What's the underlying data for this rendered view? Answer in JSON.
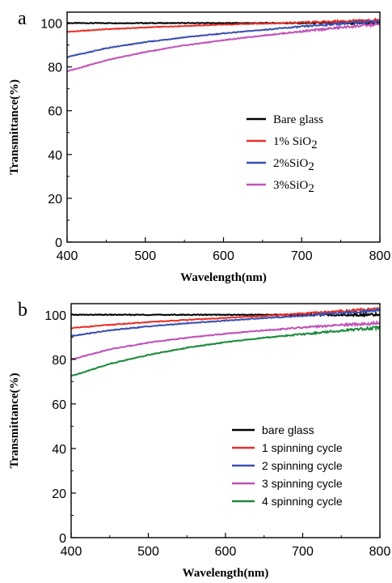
{
  "chart_data": [
    {
      "panel_label": "a",
      "type": "line",
      "xlabel": "Wavelength(nm)",
      "ylabel": "Transmittance(%)",
      "xlim": [
        400,
        800
      ],
      "ylim": [
        0,
        105
      ],
      "xticks": [
        400,
        500,
        600,
        700,
        800
      ],
      "yticks": [
        0,
        20,
        40,
        60,
        80,
        100
      ],
      "legend_position": "center-right",
      "series": [
        {
          "name": "Bare glass",
          "name_base": "Bare glass",
          "name_sub": "",
          "color": "#000000",
          "x": [
            400,
            450,
            500,
            550,
            600,
            650,
            700,
            750,
            800
          ],
          "y": [
            100.0,
            100.0,
            100.0,
            100.0,
            100.0,
            100.0,
            100.0,
            100.0,
            100.0
          ]
        },
        {
          "name": "1% SiO2",
          "name_base": "1% SiO",
          "name_sub": "2",
          "color": "#e8302a",
          "x": [
            400,
            450,
            500,
            550,
            600,
            650,
            700,
            750,
            800
          ],
          "y": [
            96.0,
            97.2,
            98.0,
            98.7,
            99.3,
            99.8,
            100.3,
            100.8,
            101.3
          ]
        },
        {
          "name": "2%SiO2",
          "name_base": "2%SiO",
          "name_sub": "2",
          "color": "#3b4fb0",
          "x": [
            400,
            450,
            500,
            550,
            600,
            650,
            700,
            750,
            800
          ],
          "y": [
            84.5,
            88.5,
            91.3,
            93.5,
            95.3,
            96.9,
            98.4,
            99.8,
            101.0
          ]
        },
        {
          "name": "3%SiO2",
          "name_base": "3%SiO",
          "name_sub": "2",
          "color": "#c052b8",
          "x": [
            400,
            450,
            500,
            550,
            600,
            650,
            700,
            750,
            800
          ],
          "y": [
            78.0,
            83.0,
            86.8,
            89.8,
            92.2,
            94.3,
            96.2,
            98.0,
            99.5
          ]
        }
      ]
    },
    {
      "panel_label": "b",
      "type": "line",
      "xlabel": "Wavelength(nm)",
      "ylabel": "Transmittance(%)",
      "xlim": [
        400,
        800
      ],
      "ylim": [
        0,
        105
      ],
      "xticks": [
        400,
        500,
        600,
        700,
        800
      ],
      "yticks": [
        0,
        20,
        40,
        60,
        80,
        100
      ],
      "legend_position": "lower-right",
      "series": [
        {
          "name": "bare glass",
          "name_base": "bare glass",
          "name_sub": "",
          "color": "#000000",
          "x": [
            400,
            450,
            500,
            550,
            600,
            650,
            700,
            750,
            800
          ],
          "y": [
            100.0,
            100.0,
            100.0,
            100.0,
            100.0,
            100.0,
            100.0,
            100.0,
            100.0
          ]
        },
        {
          "name": "1 spinning cycle",
          "name_base": "1 spinning cycle",
          "name_sub": "",
          "color": "#e8302a",
          "x": [
            400,
            450,
            500,
            550,
            600,
            650,
            700,
            750,
            800
          ],
          "y": [
            94.0,
            95.5,
            96.7,
            97.7,
            98.6,
            99.5,
            100.5,
            101.6,
            102.8
          ]
        },
        {
          "name": "2 spinning cycle",
          "name_base": "2 spinning cycle",
          "name_sub": "",
          "color": "#3b4fb0",
          "x": [
            400,
            450,
            500,
            550,
            600,
            650,
            700,
            750,
            800
          ],
          "y": [
            90.5,
            93.0,
            94.8,
            96.2,
            97.4,
            98.5,
            99.6,
            100.8,
            102.0
          ]
        },
        {
          "name": "3 spinning cycle",
          "name_base": "3 spinning cycle",
          "name_sub": "",
          "color": "#c052b8",
          "x": [
            400,
            450,
            500,
            550,
            600,
            650,
            700,
            750,
            800
          ],
          "y": [
            80.0,
            84.5,
            87.5,
            89.7,
            91.5,
            93.0,
            94.3,
            95.4,
            96.3
          ]
        },
        {
          "name": "4 spinning cycle",
          "name_base": "4 spinning cycle",
          "name_sub": "",
          "color": "#1c8a3c",
          "x": [
            400,
            450,
            500,
            550,
            600,
            650,
            700,
            750,
            800
          ],
          "y": [
            72.5,
            78.0,
            82.0,
            85.2,
            87.7,
            89.7,
            91.3,
            92.9,
            94.3
          ]
        }
      ]
    }
  ]
}
